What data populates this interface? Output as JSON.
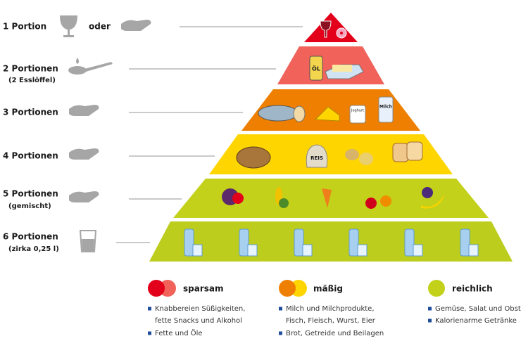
{
  "levels": [
    {
      "label": "1 Portion",
      "extra": "oder"
    },
    {
      "label": "2 Portionen",
      "sublabel": "(2 Esslöffel)",
      "food_labels": [
        "ÖL"
      ]
    },
    {
      "label": "3 Portionen",
      "food_labels": [
        "Joghurt",
        "Milch"
      ]
    },
    {
      "label": "4 Portionen",
      "food_labels": [
        "REIS"
      ]
    },
    {
      "label": "5 Portionen",
      "sublabel": "(gemischt)"
    },
    {
      "label": "6 Portionen",
      "sublabel": "(zirka 0,25 l)"
    }
  ],
  "legend": [
    {
      "title": "sparsam",
      "items": [
        "Knabbereien Süßigkeiten,",
        "fette Snacks und Alkohol",
        "Fette und Öle"
      ]
    },
    {
      "title": "mäßig",
      "items": [
        "Milch und Milchprodukte,",
        "Fisch, Fleisch, Wurst, Eier",
        "Brot, Getreide und Beilagen"
      ]
    },
    {
      "title": "reichlich",
      "items": [
        "Gemüse, Salat und Obst",
        "Kalorienarme Getränke"
      ]
    }
  ]
}
